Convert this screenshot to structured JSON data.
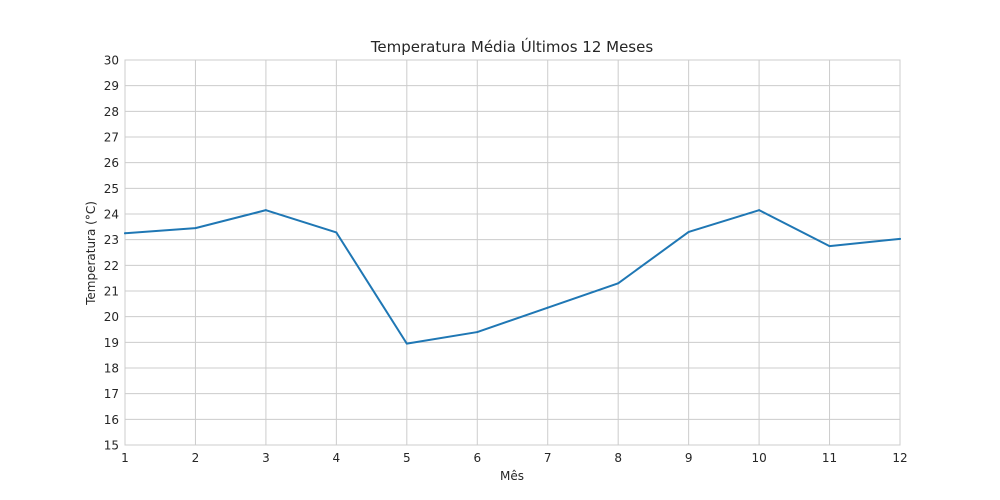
{
  "chart_data": {
    "type": "line",
    "title": "Temperatura Média Últimos 12 Meses",
    "xlabel": "Mês",
    "ylabel": "Temperatura (°C)",
    "x": [
      1,
      2,
      3,
      4,
      5,
      6,
      7,
      8,
      9,
      10,
      11,
      12
    ],
    "series": [
      {
        "values": [
          23.25,
          23.45,
          24.15,
          23.28,
          18.95,
          19.4,
          20.35,
          21.3,
          23.3,
          24.15,
          22.75,
          23.03
        ],
        "color": "#1f77b4"
      }
    ],
    "xlim": [
      1,
      12
    ],
    "ylim": [
      15,
      30
    ],
    "xticks": [
      "1",
      "2",
      "3",
      "4",
      "5",
      "6",
      "7",
      "8",
      "9",
      "10",
      "11",
      "12"
    ],
    "yticks": [
      "15",
      "16",
      "17",
      "18",
      "19",
      "20",
      "21",
      "22",
      "23",
      "24",
      "25",
      "26",
      "27",
      "28",
      "29",
      "30"
    ],
    "grid": true,
    "legend": "none"
  }
}
